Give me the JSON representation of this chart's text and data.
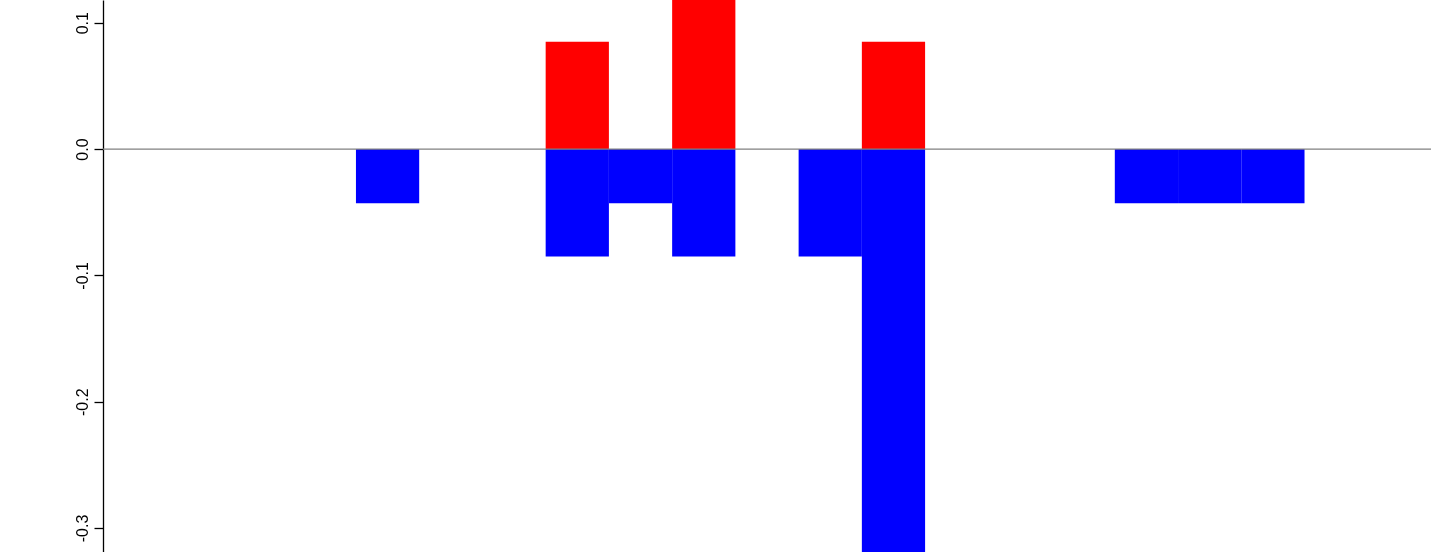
{
  "chart_data": {
    "type": "bar",
    "stacked": true,
    "tick_labels": "y",
    "categories": [
      null,
      null,
      null,
      null,
      null,
      null,
      null,
      null,
      null,
      null,
      null,
      null,
      null,
      null,
      null,
      null,
      null,
      null,
      null,
      null,
      null
    ],
    "series": [
      {
        "color": "#0000ff",
        "values": [
          null,
          null,
          null,
          null,
          -0.043,
          null,
          null,
          -0.085,
          -0.043,
          -0.085,
          null,
          -0.085,
          -0.319,
          null,
          null,
          null,
          -0.043,
          -0.043,
          -0.043,
          null,
          null
        ]
      },
      {
        "color": "#ff0000",
        "values": [
          null,
          null,
          null,
          null,
          null,
          null,
          null,
          0.085,
          null,
          0.118,
          null,
          null,
          0.085,
          null,
          null,
          null,
          null,
          null,
          null,
          null,
          null
        ]
      }
    ],
    "ylim": [
      -0.319,
      0.118
    ],
    "yticks": [
      -0.3,
      -0.2,
      -0.1,
      {
        "value": 0,
        "label": "0.0"
      },
      0.1
    ],
    "ref_lines": [
      {
        "axis": "y",
        "value": 0,
        "color": "#808080"
      }
    ]
  }
}
